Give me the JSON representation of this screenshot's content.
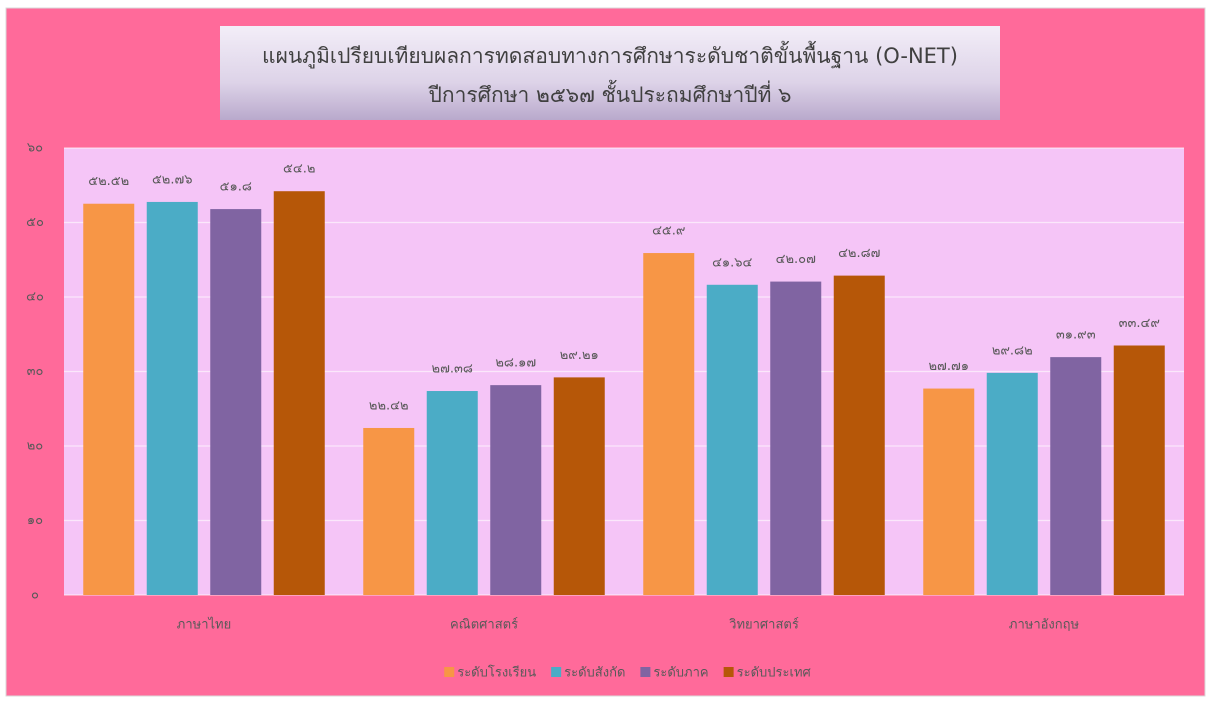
{
  "chart_data": {
    "type": "bar",
    "title": "แผนภูมิเปรียบเทียบผลการทดสอบทางการศึกษาระดับชาติขั้นพื้นฐาน (O-NET)",
    "subtitle": "ปีการศึกษา ๒๕๖๗ ชั้นประถมศึกษาปีที่ ๖",
    "categories": [
      "ภาษาไทย",
      "คณิตศาสตร์",
      "วิทยาศาสตร์",
      "ภาษาอังกฤษ"
    ],
    "series": [
      {
        "name": "ระดับโรงเรียน",
        "color": "#f79646",
        "values": [
          52.52,
          22.42,
          45.9,
          27.71
        ],
        "value_labels": [
          "๕๒.๕๒",
          "๒๒.๔๒",
          "๔๕.๙",
          "๒๗.๗๑"
        ]
      },
      {
        "name": "ระดับสังกัด",
        "color": "#4bacc6",
        "values": [
          52.76,
          27.38,
          41.64,
          29.82
        ],
        "value_labels": [
          "๕๒.๗๖",
          "๒๗.๓๘",
          "๔๑.๖๔",
          "๒๙.๘๒"
        ]
      },
      {
        "name": "ระดับภาค",
        "color": "#8064a2",
        "values": [
          51.8,
          28.17,
          42.07,
          31.93
        ],
        "value_labels": [
          "๕๑.๘",
          "๒๘.๑๗",
          "๔๒.๐๗",
          "๓๑.๙๓"
        ]
      },
      {
        "name": "ระดับประเทศ",
        "color": "#b65708",
        "values": [
          54.2,
          29.21,
          42.87,
          33.49
        ],
        "value_labels": [
          "๕๔.๒",
          "๒๙.๒๑",
          "๔๒.๘๗",
          "๓๓.๔๙"
        ]
      }
    ],
    "ylim": [
      0,
      60
    ],
    "yticks": [
      {
        "value": 0,
        "label": "๐"
      },
      {
        "value": 10,
        "label": "๑๐"
      },
      {
        "value": 20,
        "label": "๒๐"
      },
      {
        "value": 30,
        "label": "๓๐"
      },
      {
        "value": 40,
        "label": "๔๐"
      },
      {
        "value": 50,
        "label": "๕๐"
      },
      {
        "value": 60,
        "label": "๖๐"
      }
    ],
    "grid": true,
    "legend": "bottom"
  }
}
